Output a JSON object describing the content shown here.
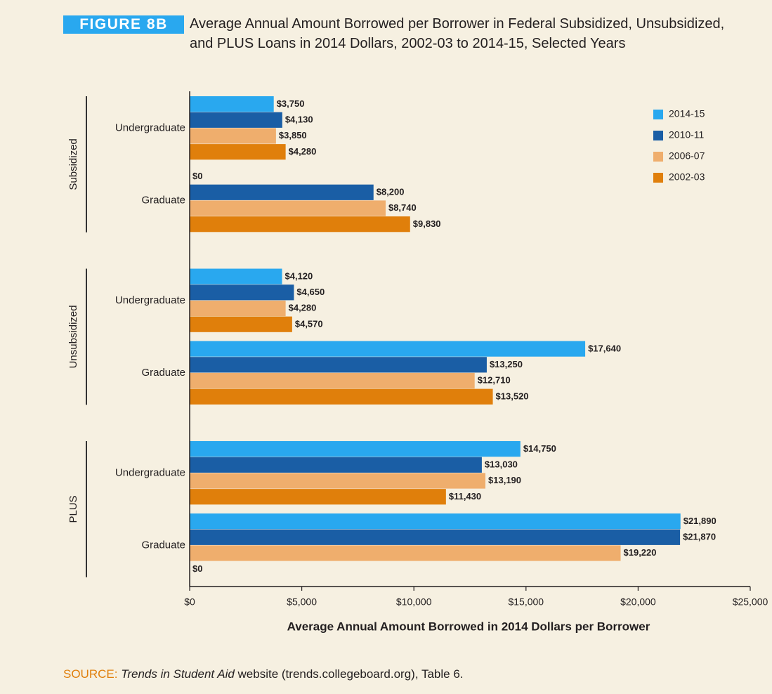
{
  "chart_data": {
    "type": "hbar",
    "figure_label": "FIGURE 8B",
    "title": "Average Annual Amount Borrowed per Borrower in Federal Subsidized, Unsubsidized, and PLUS Loans in 2014 Dollars, 2002-03 to 2014-15, Selected Years",
    "xlabel": "Average Annual Amount Borrowed in 2014 Dollars per Borrower",
    "groups": [
      "Subsidized",
      "Unsubsidized",
      "PLUS"
    ],
    "categories": [
      "Undergraduate",
      "Graduate",
      "Undergraduate",
      "Graduate",
      "Undergraduate",
      "Graduate"
    ],
    "series": [
      {
        "name": "2014-15",
        "color": "#29a8ef",
        "values": [
          3750,
          0,
          4120,
          17640,
          14750,
          21890
        ],
        "value_labels": [
          "$3,750",
          "$0",
          "$4,120",
          "$17,640",
          "$14,750",
          "$21,890"
        ]
      },
      {
        "name": "2010-11",
        "color": "#1a5ea5",
        "values": [
          4130,
          8200,
          4650,
          13250,
          13030,
          21870
        ],
        "value_labels": [
          "$4,130",
          "$8,200",
          "$4,650",
          "$13,250",
          "$13,030",
          "$21,870"
        ]
      },
      {
        "name": "2006-07",
        "color": "#efae6d",
        "values": [
          3850,
          8740,
          4280,
          12710,
          13190,
          19220
        ],
        "value_labels": [
          "$3,850",
          "$8,740",
          "$4,280",
          "$12,710",
          "$13,190",
          "$19,220"
        ]
      },
      {
        "name": "2002-03",
        "color": "#e07f0b",
        "values": [
          4280,
          9830,
          4570,
          13520,
          11430,
          0
        ],
        "value_labels": [
          "$4,280",
          "$9,830",
          "$4,570",
          "$13,520",
          "$11,430",
          "$0"
        ]
      }
    ],
    "xlim": [
      0,
      25000
    ],
    "xticks": [
      {
        "value": 0,
        "label": "$0"
      },
      {
        "value": 5000,
        "label": "$5,000"
      },
      {
        "value": 10000,
        "label": "$10,000"
      },
      {
        "value": 15000,
        "label": "$15,000"
      },
      {
        "value": 20000,
        "label": "$20,000"
      },
      {
        "value": 25000,
        "label": "$25,000"
      }
    ],
    "legend": "upper right",
    "source": {
      "label": "SOURCE:",
      "title": "Trends in Student Aid",
      "text": "website (trends.collegeboard.org), Table 6."
    }
  }
}
